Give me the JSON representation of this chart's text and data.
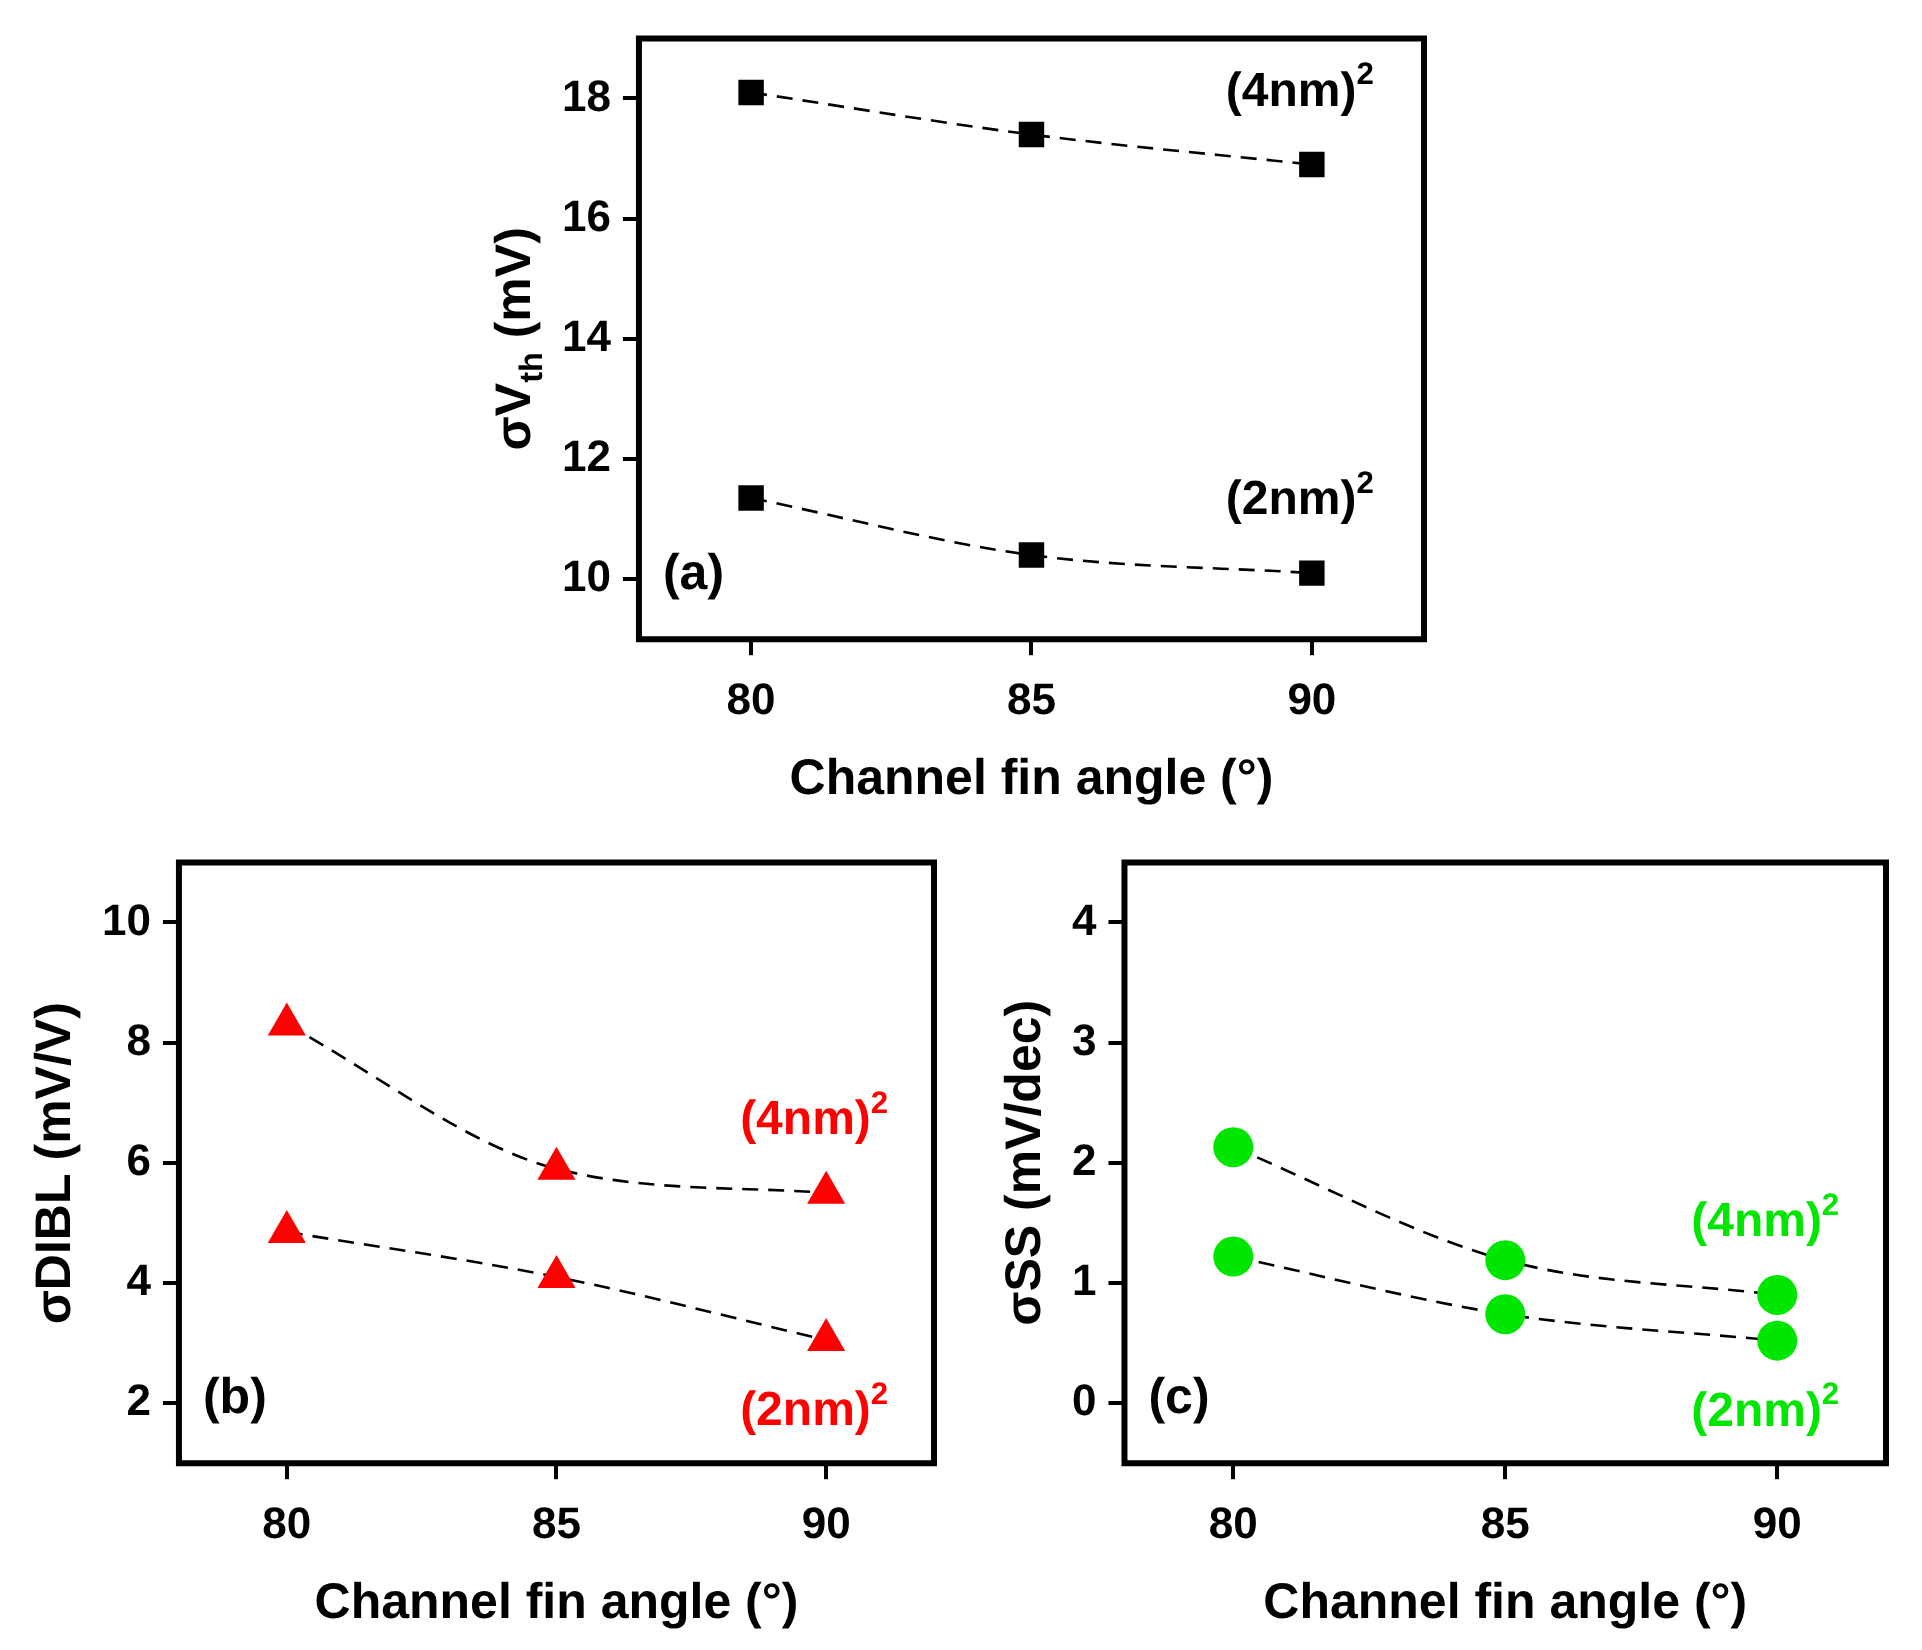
{
  "chart_data": [
    {
      "type": "line",
      "xlabel": "Channel fin angle (°)",
      "ylabel": "σV$_{th}$ (mV)",
      "x": [
        80,
        85,
        90
      ],
      "xlim": [
        78,
        92
      ],
      "xticks": [
        80,
        85,
        90
      ],
      "ylim": [
        9,
        19
      ],
      "yticks": [
        10,
        12,
        14,
        16,
        18
      ],
      "marker": "square",
      "line_style": "dashed",
      "grid": false,
      "legend": false,
      "annotations": [
        "(a)"
      ],
      "series": [
        {
          "name": "(4nm)$^{2}$",
          "color": "#000000",
          "values": [
            18.1,
            17.4,
            16.9
          ]
        },
        {
          "name": "(2nm)$^{2}$",
          "color": "#000000",
          "values": [
            11.35,
            10.4,
            10.1
          ]
        }
      ]
    },
    {
      "type": "line",
      "xlabel": "Channel fin angle (°)",
      "ylabel": "σDIBL (mV/V)",
      "x": [
        80,
        85,
        90
      ],
      "xlim": [
        78,
        92
      ],
      "xticks": [
        80,
        85,
        90
      ],
      "ylim": [
        1,
        11
      ],
      "yticks": [
        2,
        4,
        6,
        8,
        10
      ],
      "marker": "triangle",
      "line_style": "dashed",
      "grid": false,
      "legend": false,
      "annotations": [
        "(b)"
      ],
      "series": [
        {
          "name": "(4nm)$^{2}$",
          "color": "#ff0000",
          "values": [
            8.3,
            5.9,
            5.5
          ]
        },
        {
          "name": "(2nm)$^{2}$",
          "color": "#ff0000",
          "values": [
            4.85,
            4.1,
            3.05
          ]
        }
      ]
    },
    {
      "type": "line",
      "xlabel": "Channel fin angle (°)",
      "ylabel": "σSS (mV/dec)",
      "x": [
        80,
        85,
        90
      ],
      "xlim": [
        78,
        92
      ],
      "xticks": [
        80,
        85,
        90
      ],
      "ylim": [
        -0.5,
        4.5
      ],
      "yticks": [
        0,
        1,
        2,
        3,
        4
      ],
      "marker": "circle",
      "line_style": "dashed",
      "grid": false,
      "legend": false,
      "annotations": [
        "(c)"
      ],
      "series": [
        {
          "name": "(4nm)$^{2}$",
          "color": "#00e600",
          "values": [
            2.13,
            1.19,
            0.9
          ]
        },
        {
          "name": "(2nm)$^{2}$",
          "color": "#00e600",
          "values": [
            1.22,
            0.74,
            0.52
          ]
        }
      ]
    }
  ]
}
